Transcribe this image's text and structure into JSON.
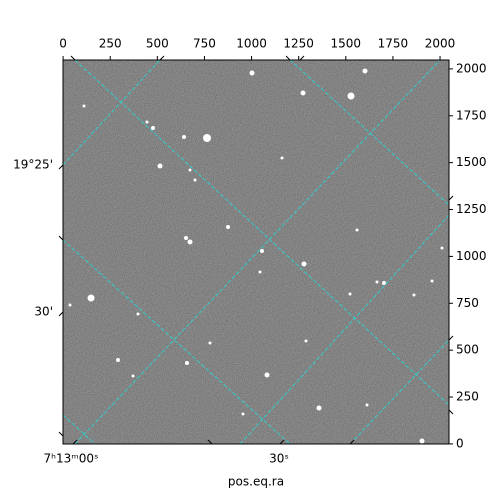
{
  "chart_data": {
    "type": "image",
    "xlabel": "pos.eq.ra",
    "xlim": [
      -0.5,
      2047.5
    ],
    "ylim": [
      -0.5,
      2047.5
    ],
    "xticks": [
      0,
      250,
      500,
      750,
      1000,
      1250,
      1500,
      1750,
      2000
    ],
    "yticks": [
      0,
      250,
      500,
      750,
      1000,
      1250,
      1500,
      1750,
      2000
    ],
    "ra_labels": [
      "7ʰ13ᵐ00ˢ",
      "30ˢ"
    ],
    "dec_labels": [
      "19°25'",
      "30'"
    ]
  }
}
